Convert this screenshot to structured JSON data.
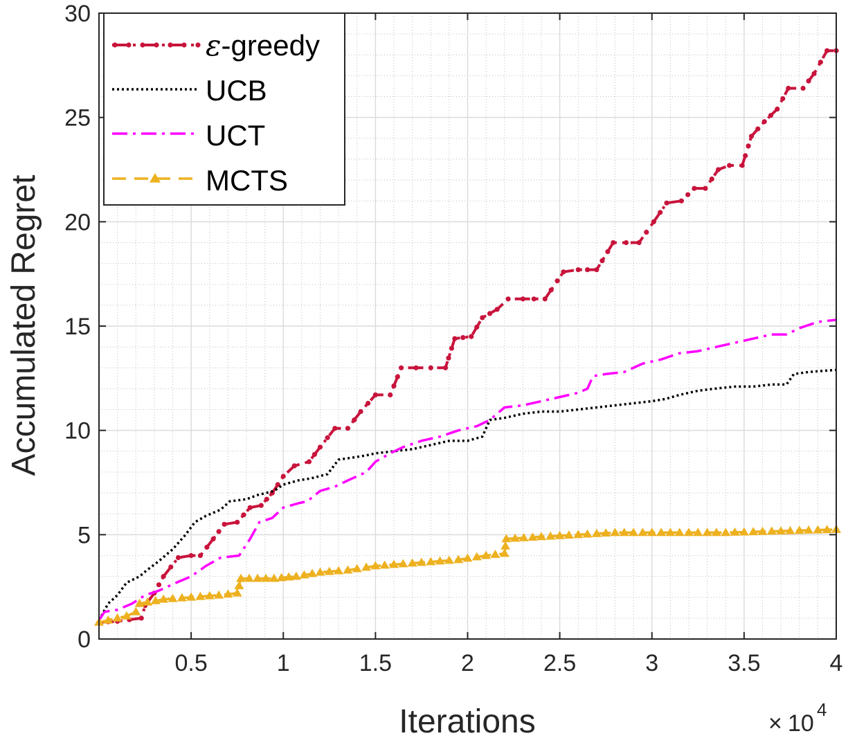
{
  "chart_data": {
    "type": "line",
    "xlabel": "Iterations",
    "ylabel": "Accumulated Regret",
    "x_multiplier": {
      "times": "×",
      "base": "10",
      "exponent": "4"
    },
    "xlim": [
      0,
      40000
    ],
    "ylim": [
      0,
      30
    ],
    "x_ticks": [
      5000,
      10000,
      15000,
      20000,
      25000,
      30000,
      35000,
      40000
    ],
    "x_tick_labels": [
      "0.5",
      "1",
      "1.5",
      "2",
      "2.5",
      "3",
      "3.5",
      "4"
    ],
    "y_ticks": [
      0,
      5,
      10,
      15,
      20,
      25,
      30
    ],
    "y_tick_labels": [
      "0",
      "5",
      "10",
      "15",
      "20",
      "25",
      "30"
    ],
    "grid": true,
    "minor_grid": true,
    "legend_position": "top-left",
    "series": [
      {
        "name": "ε-greedy",
        "legend_prefix": "ε",
        "legend_suffix": "-greedy",
        "color": "#c8143c",
        "style": "dashdot",
        "marker": "dot",
        "points": [
          [
            0,
            0.8
          ],
          [
            1000,
            0.85
          ],
          [
            2300,
            1.0
          ],
          [
            2500,
            1.6
          ],
          [
            3000,
            2.2
          ],
          [
            3500,
            3.0
          ],
          [
            4300,
            3.9
          ],
          [
            5000,
            4.0
          ],
          [
            5500,
            4.0
          ],
          [
            6200,
            4.8
          ],
          [
            6800,
            5.5
          ],
          [
            7500,
            5.6
          ],
          [
            8200,
            6.3
          ],
          [
            8800,
            6.4
          ],
          [
            9400,
            7.0
          ],
          [
            10000,
            7.8
          ],
          [
            10600,
            8.3
          ],
          [
            11400,
            8.5
          ],
          [
            12000,
            9.2
          ],
          [
            12800,
            10.1
          ],
          [
            13500,
            10.1
          ],
          [
            14200,
            10.9
          ],
          [
            15000,
            11.7
          ],
          [
            15800,
            11.7
          ],
          [
            16400,
            13.0
          ],
          [
            17200,
            13.0
          ],
          [
            18000,
            13.0
          ],
          [
            18800,
            13.0
          ],
          [
            19300,
            14.4
          ],
          [
            20200,
            14.5
          ],
          [
            20800,
            15.4
          ],
          [
            21600,
            15.8
          ],
          [
            22200,
            16.3
          ],
          [
            23000,
            16.3
          ],
          [
            24200,
            16.3
          ],
          [
            25200,
            17.6
          ],
          [
            26000,
            17.7
          ],
          [
            27000,
            17.7
          ],
          [
            27900,
            19.0
          ],
          [
            29300,
            19.0
          ],
          [
            30100,
            20.0
          ],
          [
            30800,
            20.9
          ],
          [
            31600,
            21.0
          ],
          [
            32300,
            21.6
          ],
          [
            32900,
            21.6
          ],
          [
            33600,
            22.5
          ],
          [
            34200,
            22.7
          ],
          [
            34900,
            22.7
          ],
          [
            35400,
            24.1
          ],
          [
            36100,
            24.8
          ],
          [
            36800,
            25.4
          ],
          [
            37400,
            26.4
          ],
          [
            38200,
            26.4
          ],
          [
            38800,
            27.1
          ],
          [
            39500,
            28.2
          ],
          [
            40000,
            28.2
          ]
        ]
      },
      {
        "name": "UCB",
        "color": "#000000",
        "style": "dotted",
        "marker": "none",
        "points": [
          [
            0,
            0.9
          ],
          [
            500,
            1.7
          ],
          [
            1000,
            2.1
          ],
          [
            1500,
            2.7
          ],
          [
            2200,
            3.0
          ],
          [
            2600,
            3.3
          ],
          [
            3200,
            3.7
          ],
          [
            4000,
            4.3
          ],
          [
            4700,
            5.0
          ],
          [
            5200,
            5.6
          ],
          [
            5800,
            5.9
          ],
          [
            6600,
            6.2
          ],
          [
            7100,
            6.6
          ],
          [
            8000,
            6.7
          ],
          [
            8600,
            6.9
          ],
          [
            9500,
            7.1
          ],
          [
            10000,
            7.4
          ],
          [
            10800,
            7.6
          ],
          [
            11500,
            7.7
          ],
          [
            12400,
            7.9
          ],
          [
            13000,
            8.6
          ],
          [
            13800,
            8.7
          ],
          [
            14500,
            8.8
          ],
          [
            15000,
            8.9
          ],
          [
            16000,
            9.0
          ],
          [
            17000,
            9.1
          ],
          [
            18000,
            9.3
          ],
          [
            19000,
            9.5
          ],
          [
            20000,
            9.5
          ],
          [
            20800,
            9.7
          ],
          [
            21200,
            10.5
          ],
          [
            22000,
            10.6
          ],
          [
            23000,
            10.8
          ],
          [
            24000,
            10.9
          ],
          [
            25000,
            10.9
          ],
          [
            26000,
            11.0
          ],
          [
            27000,
            11.1
          ],
          [
            28000,
            11.2
          ],
          [
            29000,
            11.3
          ],
          [
            30000,
            11.4
          ],
          [
            30700,
            11.5
          ],
          [
            31500,
            11.7
          ],
          [
            32500,
            11.9
          ],
          [
            33400,
            12.0
          ],
          [
            34500,
            12.1
          ],
          [
            35500,
            12.1
          ],
          [
            36500,
            12.2
          ],
          [
            37300,
            12.2
          ],
          [
            37700,
            12.7
          ],
          [
            38500,
            12.8
          ],
          [
            40000,
            12.9
          ]
        ]
      },
      {
        "name": "UCT",
        "color": "#ff00ff",
        "style": "dashdot",
        "marker": "none",
        "points": [
          [
            0,
            0.9
          ],
          [
            300,
            1.3
          ],
          [
            1000,
            1.4
          ],
          [
            1800,
            1.7
          ],
          [
            2500,
            2.1
          ],
          [
            3200,
            2.3
          ],
          [
            4200,
            2.7
          ],
          [
            5000,
            3.0
          ],
          [
            5800,
            3.5
          ],
          [
            6600,
            3.9
          ],
          [
            7600,
            4.0
          ],
          [
            8200,
            4.8
          ],
          [
            8700,
            5.6
          ],
          [
            9400,
            5.8
          ],
          [
            10000,
            6.3
          ],
          [
            10800,
            6.5
          ],
          [
            11300,
            6.6
          ],
          [
            12000,
            7.1
          ],
          [
            12800,
            7.3
          ],
          [
            13500,
            7.6
          ],
          [
            14500,
            8.0
          ],
          [
            15000,
            8.5
          ],
          [
            15800,
            8.9
          ],
          [
            16500,
            9.2
          ],
          [
            17500,
            9.5
          ],
          [
            18500,
            9.7
          ],
          [
            19500,
            10.0
          ],
          [
            20500,
            10.2
          ],
          [
            21200,
            10.5
          ],
          [
            22000,
            11.1
          ],
          [
            23000,
            11.2
          ],
          [
            24000,
            11.4
          ],
          [
            25000,
            11.6
          ],
          [
            26000,
            11.8
          ],
          [
            26500,
            12.0
          ],
          [
            26800,
            12.6
          ],
          [
            27500,
            12.7
          ],
          [
            28500,
            12.8
          ],
          [
            29500,
            13.2
          ],
          [
            30500,
            13.4
          ],
          [
            31500,
            13.7
          ],
          [
            32500,
            13.8
          ],
          [
            33500,
            14.0
          ],
          [
            34500,
            14.2
          ],
          [
            35500,
            14.4
          ],
          [
            36500,
            14.6
          ],
          [
            37300,
            14.6
          ],
          [
            38000,
            14.9
          ],
          [
            39000,
            15.2
          ],
          [
            40000,
            15.3
          ]
        ]
      },
      {
        "name": "MCTS",
        "color": "#edb120",
        "style": "dashed",
        "marker": "triangle",
        "points": [
          [
            0,
            0.8
          ],
          [
            1000,
            1.0
          ],
          [
            1500,
            1.1
          ],
          [
            2000,
            1.3
          ],
          [
            2200,
            1.7
          ],
          [
            3500,
            1.9
          ],
          [
            5000,
            2.0
          ],
          [
            6500,
            2.1
          ],
          [
            7500,
            2.2
          ],
          [
            7700,
            2.9
          ],
          [
            9500,
            2.9
          ],
          [
            10700,
            3.0
          ],
          [
            12000,
            3.2
          ],
          [
            13500,
            3.3
          ],
          [
            15000,
            3.5
          ],
          [
            16500,
            3.6
          ],
          [
            18000,
            3.7
          ],
          [
            19500,
            3.8
          ],
          [
            21000,
            4.0
          ],
          [
            22000,
            4.1
          ],
          [
            22100,
            4.8
          ],
          [
            24000,
            4.9
          ],
          [
            26000,
            5.0
          ],
          [
            28000,
            5.1
          ],
          [
            30000,
            5.1
          ],
          [
            32000,
            5.1
          ],
          [
            34000,
            5.1
          ],
          [
            36000,
            5.15
          ],
          [
            38000,
            5.2
          ],
          [
            40000,
            5.25
          ]
        ]
      }
    ]
  }
}
